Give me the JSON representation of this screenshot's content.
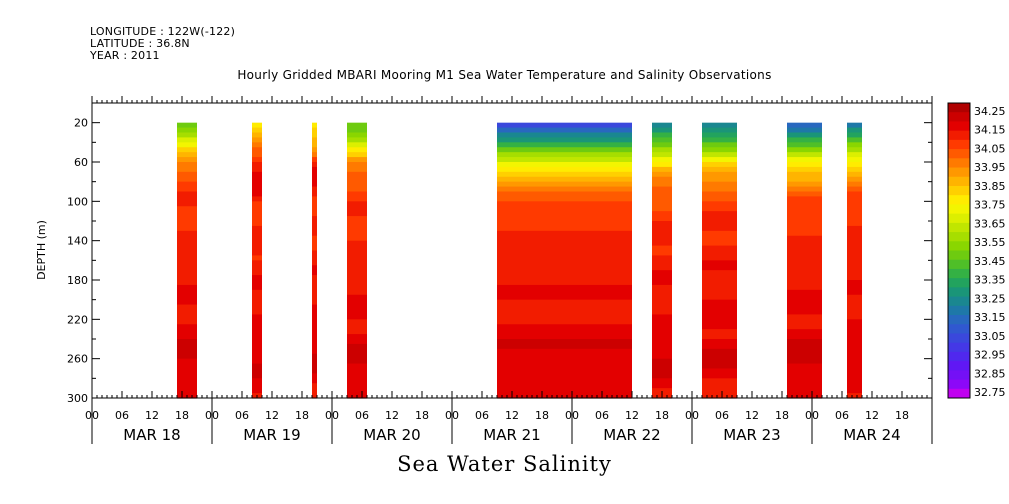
{
  "header": {
    "longitude": "LONGITUDE : 122W(-122)",
    "latitude": "LATITUDE : 36.8N",
    "year": "YEAR : 2011"
  },
  "chart_data": {
    "type": "heatmap",
    "title": "Hourly Gridded MBARI Mooring M1 Sea Water Temperature and Salinity Observations",
    "bottom_title": "Sea Water Salinity",
    "ylabel": "DEPTH (m)",
    "y_ticks": [
      20,
      60,
      100,
      140,
      180,
      220,
      260,
      300
    ],
    "ylim": [
      300,
      0
    ],
    "x_unit": "hours since MAR 17 12:00",
    "xlim": [
      0,
      168
    ],
    "x_hour_ticks": [
      "00",
      "06",
      "12",
      "18",
      "00",
      "06",
      "12",
      "18",
      "00",
      "06",
      "12",
      "18",
      "00",
      "06",
      "12",
      "18",
      "00",
      "06",
      "12",
      "18",
      "00",
      "06",
      "12",
      "18",
      "00",
      "06",
      "12",
      "18"
    ],
    "x_day_labels": [
      "MAR 18",
      "MAR 19",
      "MAR 20",
      "MAR 21",
      "MAR 22",
      "MAR 23",
      "MAR 24"
    ],
    "colorbar_labels": [
      "34.25",
      "34.15",
      "34.05",
      "33.95",
      "33.85",
      "33.75",
      "33.65",
      "33.55",
      "33.45",
      "33.35",
      "33.25",
      "33.15",
      "33.05",
      "32.95",
      "32.85",
      "32.75"
    ],
    "colorbar_colors": [
      "#b00000",
      "#cc0000",
      "#e30000",
      "#f21c00",
      "#ff3a00",
      "#ff5a00",
      "#ff7a00",
      "#ff9800",
      "#ffb400",
      "#ffd000",
      "#ffec00",
      "#f3f500",
      "#dcef00",
      "#c0e600",
      "#a6de00",
      "#8ad600",
      "#6ecb10",
      "#4fbf28",
      "#34b144",
      "#22a35e",
      "#1a9578",
      "#1a8790",
      "#1e78a8",
      "#2868bf",
      "#3058d0",
      "#3a48dc",
      "#4438e6",
      "#5028ee",
      "#6018f4",
      "#7410f6",
      "#8c08f8",
      "#c000f0"
    ],
    "value_range": [
      32.75,
      34.3
    ],
    "data_segments": [
      {
        "start": 17,
        "end": 21
      },
      {
        "start": 32,
        "end": 34
      },
      {
        "start": 44,
        "end": 45
      },
      {
        "start": 51,
        "end": 55
      },
      {
        "start": 81,
        "end": 108
      },
      {
        "start": 112,
        "end": 116
      },
      {
        "start": 122,
        "end": 129
      },
      {
        "start": 139,
        "end": 146
      },
      {
        "start": 151,
        "end": 154
      }
    ],
    "profile": {
      "depths": [
        20,
        40,
        60,
        70,
        80,
        90,
        100,
        120,
        140,
        160,
        200,
        240,
        260,
        280,
        300
      ],
      "values": [
        33.3,
        33.55,
        33.85,
        33.95,
        34.0,
        34.05,
        34.07,
        34.1,
        34.12,
        34.13,
        34.15,
        34.18,
        34.22,
        34.18,
        34.15
      ]
    },
    "surface_by_segment": [
      33.5,
      33.8,
      33.75,
      33.45,
      33.05,
      33.2,
      33.2,
      33.15,
      33.2
    ]
  }
}
